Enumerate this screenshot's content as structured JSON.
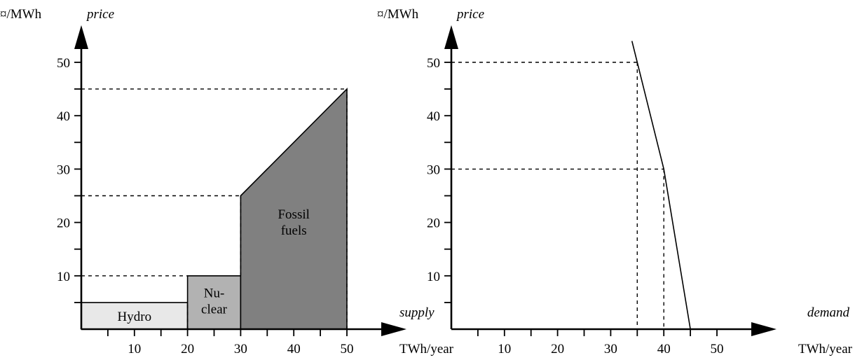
{
  "chart_data": [
    {
      "type": "area",
      "subtype": "supply-curve",
      "ylabel": "price",
      "y_unit": "¤/MWh",
      "x_unit": "TWh/year",
      "side_label": "supply",
      "xlim": [
        0,
        55
      ],
      "ylim": [
        0,
        55
      ],
      "x_ticks": [
        10,
        20,
        30,
        40,
        50
      ],
      "y_ticks": [
        10,
        20,
        30,
        40,
        50
      ],
      "x_minor_ticks": [
        5,
        15,
        25,
        35,
        45
      ],
      "y_minor_ticks": [
        5,
        15,
        25,
        35,
        45
      ],
      "regions": [
        {
          "name": "Hydro",
          "label_lines": [
            "Hydro"
          ],
          "x": [
            0,
            20
          ],
          "y_from": [
            5,
            5
          ],
          "color": "#e8e8e8"
        },
        {
          "name": "Nuclear",
          "label_lines": [
            "Nu-",
            "clear"
          ],
          "x": [
            20,
            30
          ],
          "y_from": [
            10,
            10
          ],
          "color": "#b2b2b2"
        },
        {
          "name": "Fossil fuels",
          "label_lines": [
            "Fossil",
            "fuels"
          ],
          "x": [
            30,
            50
          ],
          "y_from": [
            25,
            45
          ],
          "color": "#808080"
        }
      ],
      "reference_levels": [
        10,
        25,
        45
      ],
      "grid": false
    },
    {
      "type": "line",
      "subtype": "demand-curve",
      "ylabel": "price",
      "y_unit": "¤/MWh",
      "x_unit": "TWh/year",
      "side_label": "demand",
      "xlim": [
        0,
        55
      ],
      "ylim": [
        0,
        55
      ],
      "x_ticks": [
        10,
        20,
        30,
        40,
        50
      ],
      "y_ticks": [
        10,
        20,
        30,
        40,
        50
      ],
      "x_minor_ticks": [
        5,
        15,
        25,
        35,
        45
      ],
      "y_minor_ticks": [
        5,
        15,
        25,
        35,
        45
      ],
      "series": [
        {
          "x": [
            34,
            35,
            40,
            45
          ],
          "y": [
            54,
            50,
            30,
            0
          ]
        }
      ],
      "reference_points": [
        {
          "x": 35,
          "y": 50
        },
        {
          "x": 40,
          "y": 30
        }
      ],
      "grid": false
    }
  ]
}
